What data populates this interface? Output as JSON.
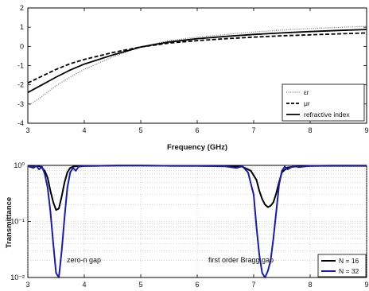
{
  "chart_data": [
    {
      "type": "line",
      "xlabel": "Frequency (GHz)",
      "ylabel": "",
      "xlim": [
        3,
        9
      ],
      "ylim": [
        -4,
        2
      ],
      "xticks": [
        "3",
        "4",
        "5",
        "6",
        "7",
        "8",
        "9"
      ],
      "yticks": [
        "-4",
        "-3",
        "-2",
        "-1",
        "0",
        "1",
        "2"
      ],
      "grid": false,
      "legend_position": "bottom-right",
      "series": [
        {
          "name": "εr",
          "style": "dotted",
          "color": "#777777",
          "x": [
            3,
            3.25,
            3.5,
            3.75,
            4,
            4.5,
            5,
            5.5,
            6,
            6.5,
            7,
            7.5,
            8,
            8.5,
            9
          ],
          "y": [
            -3.1,
            -2.6,
            -2.05,
            -1.6,
            -1.2,
            -0.55,
            -0.02,
            0.3,
            0.48,
            0.62,
            0.75,
            0.85,
            0.93,
            0.99,
            1.05
          ]
        },
        {
          "name": "μr",
          "style": "dashed",
          "color": "#000000",
          "x": [
            3,
            3.25,
            3.5,
            3.75,
            4,
            4.5,
            5,
            5.5,
            6,
            6.5,
            7,
            7.5,
            8,
            8.5,
            9
          ],
          "y": [
            -1.9,
            -1.55,
            -1.2,
            -0.9,
            -0.68,
            -0.32,
            -0.03,
            0.17,
            0.3,
            0.4,
            0.48,
            0.55,
            0.6,
            0.65,
            0.7
          ]
        },
        {
          "name": "refractive index",
          "style": "solid",
          "color": "#000000",
          "x": [
            3,
            3.25,
            3.5,
            3.75,
            4,
            4.5,
            5,
            5.5,
            6,
            6.5,
            7,
            7.5,
            8,
            8.5,
            9
          ],
          "y": [
            -2.4,
            -2.0,
            -1.6,
            -1.23,
            -0.92,
            -0.45,
            -0.03,
            0.23,
            0.4,
            0.52,
            0.62,
            0.7,
            0.77,
            0.83,
            0.88
          ]
        }
      ]
    },
    {
      "type": "line",
      "xlabel": "",
      "ylabel": "Transmittance",
      "xlim": [
        3,
        9
      ],
      "ylim": [
        0.01,
        1
      ],
      "yscale": "log",
      "xticks": [
        "3",
        "4",
        "5",
        "6",
        "7",
        "8",
        "9"
      ],
      "yticks": [
        "10⁰",
        "10⁻¹",
        "10⁻²"
      ],
      "grid": true,
      "legend_position": "bottom-right",
      "annotations": [
        "zero-n gap",
        "first order Bragg gap"
      ],
      "series": [
        {
          "name": "N = 16",
          "color": "#000000",
          "x": [
            3,
            3.2,
            3.25,
            3.3,
            3.35,
            3.4,
            3.45,
            3.5,
            3.55,
            3.6,
            3.65,
            3.7,
            3.75,
            3.8,
            3.9,
            4.2,
            4.6,
            5,
            5.6,
            6,
            6.5,
            6.8,
            6.95,
            7.05,
            7.1,
            7.15,
            7.2,
            7.25,
            7.3,
            7.35,
            7.4,
            7.45,
            7.5,
            7.6,
            7.8,
            8.2,
            8.6,
            9
          ],
          "y": [
            0.98,
            0.97,
            0.9,
            0.8,
            0.6,
            0.35,
            0.22,
            0.16,
            0.17,
            0.28,
            0.5,
            0.75,
            0.9,
            0.95,
            0.98,
            0.98,
            0.99,
            0.99,
            0.98,
            0.98,
            0.97,
            0.95,
            0.8,
            0.55,
            0.35,
            0.25,
            0.2,
            0.18,
            0.19,
            0.22,
            0.32,
            0.5,
            0.75,
            0.92,
            0.97,
            0.98,
            0.98,
            0.98
          ]
        },
        {
          "name": "N = 32",
          "color": "#1a1ab0",
          "x": [
            3,
            3.1,
            3.15,
            3.2,
            3.25,
            3.3,
            3.35,
            3.4,
            3.45,
            3.5,
            3.55,
            3.6,
            3.65,
            3.7,
            3.75,
            3.8,
            3.85,
            3.9,
            4,
            4.2,
            4.6,
            5,
            5.6,
            6,
            6.5,
            6.7,
            6.8,
            6.9,
            7,
            7.05,
            7.1,
            7.15,
            7.2,
            7.25,
            7.3,
            7.35,
            7.4,
            7.45,
            7.5,
            7.55,
            7.6,
            7.7,
            7.8,
            8,
            8.4,
            9
          ],
          "y": [
            0.97,
            0.9,
            0.98,
            0.85,
            0.95,
            0.7,
            0.4,
            0.15,
            0.04,
            0.012,
            0.01,
            0.03,
            0.12,
            0.4,
            0.75,
            0.9,
            0.8,
            0.95,
            0.97,
            0.98,
            0.99,
            0.99,
            0.98,
            0.98,
            0.96,
            0.9,
            0.97,
            0.75,
            0.3,
            0.08,
            0.025,
            0.012,
            0.01,
            0.013,
            0.02,
            0.05,
            0.15,
            0.45,
            0.8,
            0.95,
            0.85,
            0.97,
            0.93,
            0.98,
            0.99,
            0.99
          ]
        }
      ]
    }
  ]
}
